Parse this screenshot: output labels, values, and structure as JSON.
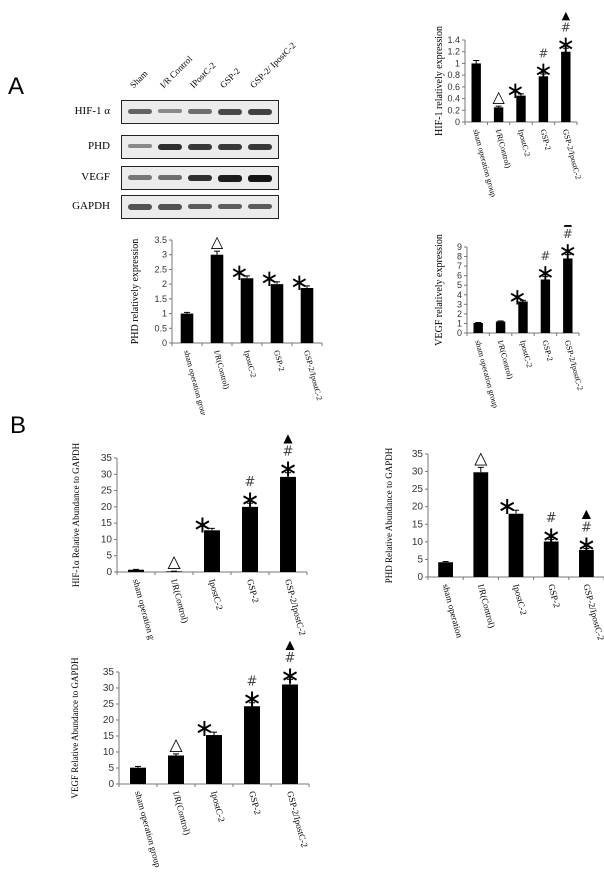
{
  "panels": {
    "A": {
      "letter": "A"
    },
    "B": {
      "letter": "B"
    }
  },
  "western_blot": {
    "lanes": [
      "Sham",
      "I/R Control",
      "IPostC-2",
      "GSP-2",
      "GSP-2/ IpostC-2"
    ],
    "rows": [
      {
        "label": "HIF-1 α",
        "intensity": [
          0.55,
          0.35,
          0.5,
          0.7,
          0.75
        ]
      },
      {
        "label": "PHD",
        "intensity": [
          0.35,
          0.85,
          0.8,
          0.8,
          0.8
        ]
      },
      {
        "label": "VEGF",
        "intensity": [
          0.45,
          0.5,
          0.85,
          0.95,
          1.0
        ]
      },
      {
        "label": "GAPDH",
        "intensity": [
          0.65,
          0.65,
          0.6,
          0.6,
          0.6
        ]
      }
    ]
  },
  "chart_data": [
    {
      "id": "A-HIF1",
      "type": "bar",
      "title": "",
      "ylabel": "HIF-1 relatively  expression",
      "xlabel": "",
      "categories": [
        "sham operation group",
        "I/R(Control)",
        "IpostC-2",
        "GSP-2",
        "GSP-2/IpostC-2"
      ],
      "values": [
        1.0,
        0.25,
        0.45,
        0.78,
        1.2
      ],
      "errors": [
        0.05,
        0.02,
        0.03,
        0.04,
        0.06
      ],
      "markers": [
        [],
        [
          "△"
        ],
        [
          "*"
        ],
        [
          "*",
          "#"
        ],
        [
          "*",
          "#",
          "▲"
        ]
      ],
      "ylim": [
        0,
        1.4
      ],
      "yticks": [
        0,
        0.2,
        0.4,
        0.6,
        0.8,
        1,
        1.2,
        1.4
      ]
    },
    {
      "id": "A-PHD",
      "type": "bar",
      "title": "",
      "ylabel": "PHD relatively  expression",
      "xlabel": "",
      "categories": [
        "sham operation group",
        "I/R(Control)",
        "IpostC-2",
        "GSP-2",
        "GSP-2/IpostC-2"
      ],
      "values": [
        1.0,
        3.0,
        2.2,
        2.0,
        1.87
      ],
      "errors": [
        0.04,
        0.12,
        0.08,
        0.08,
        0.07
      ],
      "markers": [
        [],
        [
          "△"
        ],
        [
          "*"
        ],
        [
          "*"
        ],
        [
          "*"
        ]
      ],
      "ylim": [
        0,
        3.5
      ],
      "yticks": [
        0,
        0.5,
        1,
        1.5,
        2,
        2.5,
        3,
        3.5
      ]
    },
    {
      "id": "A-VEGF",
      "type": "bar",
      "title": "",
      "ylabel": "VEGF  relatively  expression",
      "xlabel": "",
      "categories": [
        "sham operation group",
        "I/R(Control)",
        "IpostC-2",
        "GSP-2",
        "GSP-2/IpostC-2"
      ],
      "values": [
        1.05,
        1.2,
        3.3,
        5.6,
        7.8
      ],
      "errors": [
        0.05,
        0.06,
        0.12,
        0.3,
        0.4
      ],
      "markers": [
        [],
        [],
        [
          "*"
        ],
        [
          "*",
          "#"
        ],
        [
          "*",
          "#",
          "▲"
        ]
      ],
      "ylim": [
        0,
        9
      ],
      "yticks": [
        0,
        1,
        2,
        3,
        4,
        5,
        6,
        7,
        8,
        9
      ]
    },
    {
      "id": "B-HIF1",
      "type": "bar",
      "title": "",
      "ylabel": "HIF-1α   Relative  Abundance to GAPDH",
      "xlabel": "",
      "categories": [
        "sham operation group",
        "I/R(Control)",
        "IpostC-2",
        "GSP-2",
        "GSP-2/IpostC-2"
      ],
      "values": [
        0.7,
        0.2,
        12.8,
        20.0,
        29.2
      ],
      "errors": [
        0.1,
        0.05,
        0.6,
        1.1,
        1.3
      ],
      "markers": [
        [],
        [
          "△"
        ],
        [
          "*"
        ],
        [
          "*",
          "#"
        ],
        [
          "*",
          "#",
          "▲"
        ]
      ],
      "ylim": [
        0,
        35
      ],
      "yticks": [
        0,
        5,
        10,
        15,
        20,
        25,
        30,
        35
      ]
    },
    {
      "id": "B-PHD",
      "type": "bar",
      "title": "",
      "ylabel": "PHD  Relative  Abundance to GAPDH",
      "xlabel": "",
      "categories": [
        "sham operation group",
        "I/R(Control)",
        "IpostC-2",
        "GSP-2",
        "GSP-2/IpostC-2"
      ],
      "values": [
        4.2,
        29.8,
        18.0,
        10.1,
        7.7
      ],
      "errors": [
        0.2,
        1.4,
        1.0,
        0.6,
        0.4
      ],
      "markers": [
        [],
        [
          "△"
        ],
        [
          "*"
        ],
        [
          "*",
          "#"
        ],
        [
          "*",
          "#",
          "▲"
        ]
      ],
      "ylim": [
        0,
        35
      ],
      "yticks": [
        0,
        5,
        10,
        15,
        20,
        25,
        30,
        35
      ]
    },
    {
      "id": "B-VEGF",
      "type": "bar",
      "title": "",
      "ylabel": "VEGF   Relative  Abundance to GAPDH",
      "xlabel": "",
      "categories": [
        "sham operation group",
        "I/R(Control)",
        "IpostC-2",
        "GSP-2",
        "GSP-2/IpostC-2"
      ],
      "values": [
        5.1,
        8.9,
        15.3,
        24.3,
        31.1
      ],
      "errors": [
        0.4,
        0.5,
        0.9,
        1.1,
        1.6
      ],
      "markers": [
        [],
        [
          "△"
        ],
        [
          "*"
        ],
        [
          "*",
          "#"
        ],
        [
          "*",
          "#",
          "▲"
        ]
      ],
      "ylim": [
        0,
        35
      ],
      "yticks": [
        0,
        5,
        10,
        15,
        20,
        25,
        30,
        35
      ]
    }
  ]
}
